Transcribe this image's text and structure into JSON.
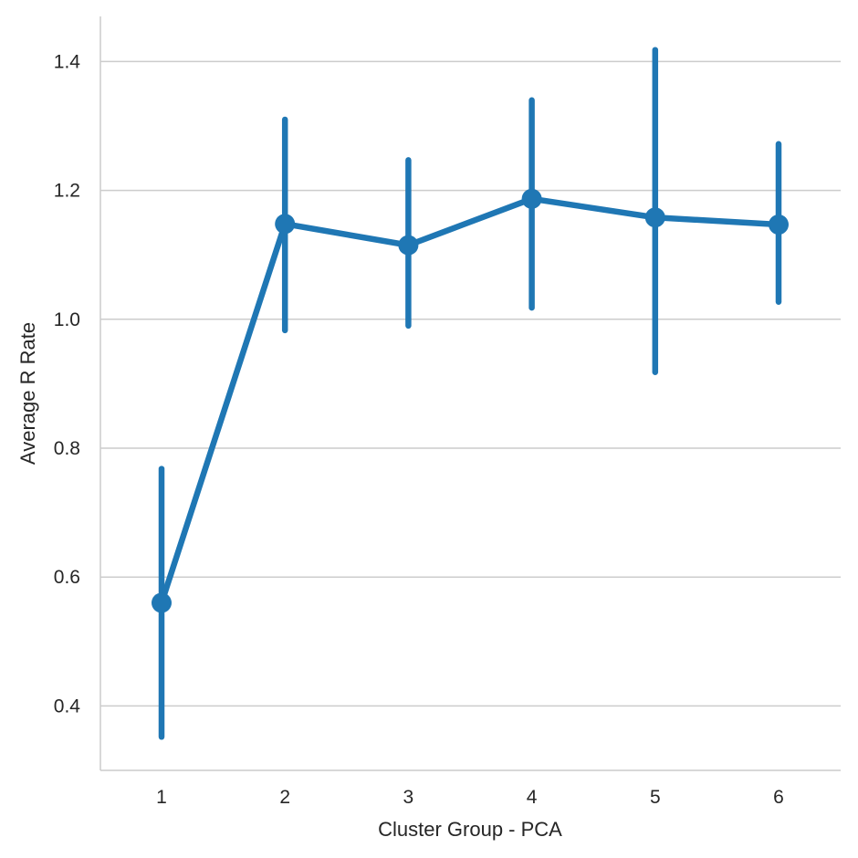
{
  "chart_data": {
    "type": "line",
    "subtype": "pointplot-with-error-bars",
    "title": "",
    "xlabel": "Cluster Group - PCA",
    "ylabel": "Average R Rate",
    "categories": [
      "1",
      "2",
      "3",
      "4",
      "5",
      "6"
    ],
    "series": [
      {
        "values": [
          0.56,
          1.148,
          1.115,
          1.187,
          1.158,
          1.147
        ],
        "ci_low": [
          0.352,
          0.983,
          0.99,
          1.018,
          0.918,
          1.027
        ],
        "ci_high": [
          0.768,
          1.31,
          1.247,
          1.34,
          1.418,
          1.272
        ],
        "color": "#1f77b4"
      }
    ],
    "ylim": [
      0.3,
      1.47
    ],
    "yticks": [
      0.4,
      0.6,
      0.8,
      1.0,
      1.2,
      1.4
    ],
    "ytick_labels": [
      "0.4",
      "0.6",
      "0.8",
      "1.0",
      "1.2",
      "1.4"
    ],
    "grid": "horizontal",
    "legend": "none"
  }
}
